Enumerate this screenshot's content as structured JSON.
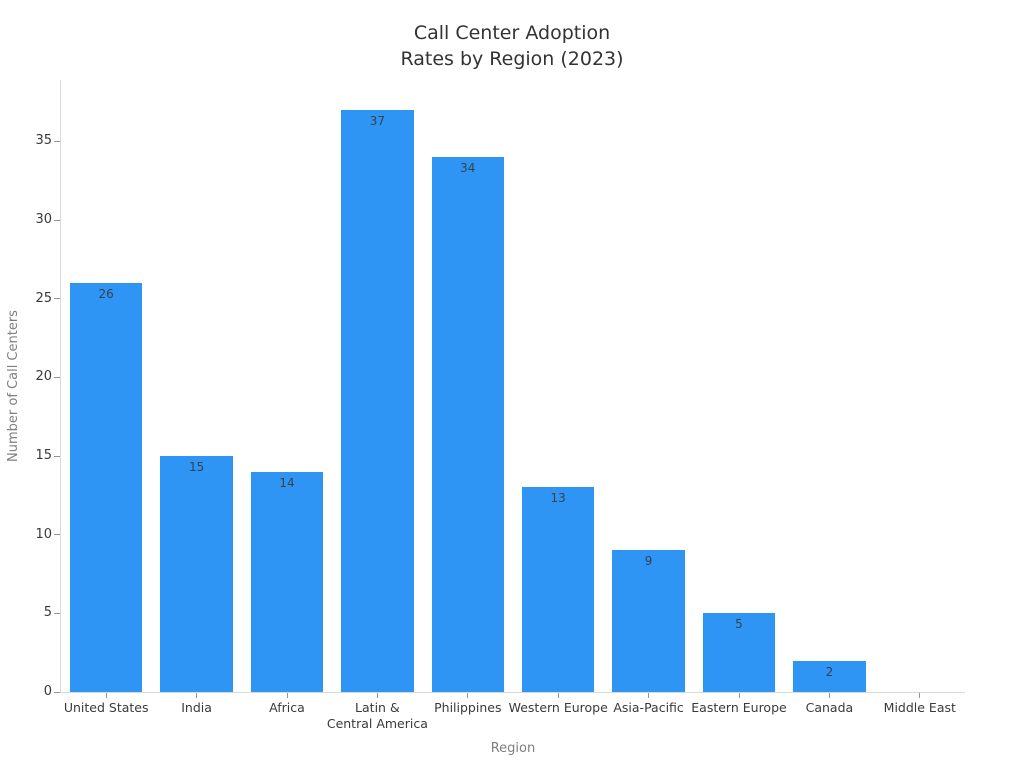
{
  "page": {
    "background": "#ffffff"
  },
  "chart_data": {
    "type": "bar",
    "title": "Call Center Adoption\nRates by Region (2023)",
    "xlabel": "Region",
    "ylabel": "Number of Call Centers",
    "categories": [
      "United States",
      "India",
      "Africa",
      "Latin &\nCentral America",
      "Philippines",
      "Western Europe",
      "Asia-Pacific",
      "Eastern Europe",
      "Canada",
      "Middle East"
    ],
    "values": [
      26,
      15,
      14,
      37,
      34,
      13,
      9,
      5,
      2,
      0
    ],
    "yticks": [
      0,
      5,
      10,
      15,
      20,
      25,
      30,
      35
    ],
    "ylim": [
      0,
      38.9
    ],
    "grid": false,
    "legend": "none",
    "value_labels_shown": true,
    "colors": {
      "bar": "#2F95F5",
      "value_label": "#37424c",
      "tick_label": "#3a3a3a",
      "axis_title": "#7f7f7f",
      "title": "#333333",
      "spine": "#d9d9d9",
      "tick_mark": "#949494"
    }
  }
}
